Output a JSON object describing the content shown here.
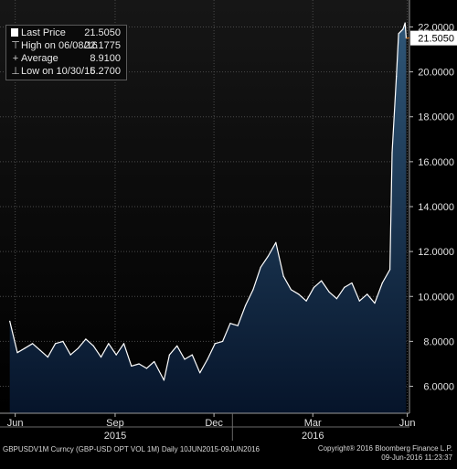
{
  "legend": {
    "last_price_label": "Last Price",
    "last_price_value": "21.5050",
    "high_label": "High on 06/08/16",
    "high_value": "22.1775",
    "average_label": "Average",
    "average_value": "8.9100",
    "low_label": "Low on 10/30/15",
    "low_value": "6.2700"
  },
  "last_price_tag": "21.5050",
  "footer": {
    "left": "GBPUSDV1M Curncy (GBP-USD OPT VOL 1M)  Daily 10JUN2015-09JUN2016",
    "right_line1": "Copyright® 2016 Bloomberg Finance L.P.",
    "right_line2": "09-Jun-2016 11:23:37"
  },
  "colors": {
    "background": "#000000",
    "plot_background_top": "#141414",
    "area_fill_top": "#2b4f6e",
    "area_fill_bottom": "#07162a",
    "line": "#ffffff",
    "grid": "#4a4a4a",
    "last_price_tag": "#ffffff",
    "last_price_marker": "#e07b20"
  },
  "chart_data": {
    "type": "area",
    "series": [
      {
        "name": "Last Price",
        "x": [
          "2015-06-10",
          "2015-06-17",
          "2015-06-24",
          "2015-07-01",
          "2015-07-08",
          "2015-07-15",
          "2015-07-22",
          "2015-07-29",
          "2015-08-05",
          "2015-08-12",
          "2015-08-19",
          "2015-08-26",
          "2015-09-02",
          "2015-09-09",
          "2015-09-16",
          "2015-09-23",
          "2015-09-30",
          "2015-10-07",
          "2015-10-14",
          "2015-10-21",
          "2015-10-30",
          "2015-11-04",
          "2015-11-11",
          "2015-11-18",
          "2015-11-25",
          "2015-12-02",
          "2015-12-09",
          "2015-12-16",
          "2015-12-23",
          "2015-12-30",
          "2016-01-06",
          "2016-01-13",
          "2016-01-20",
          "2016-01-27",
          "2016-02-03",
          "2016-02-10",
          "2016-02-17",
          "2016-02-24",
          "2016-03-02",
          "2016-03-09",
          "2016-03-16",
          "2016-03-23",
          "2016-03-30",
          "2016-04-06",
          "2016-04-13",
          "2016-04-20",
          "2016-04-27",
          "2016-05-04",
          "2016-05-11",
          "2016-05-18",
          "2016-05-25",
          "2016-05-27",
          "2016-05-31",
          "2016-06-02",
          "2016-06-06",
          "2016-06-08",
          "2016-06-09"
        ],
        "values": [
          8.9,
          7.5,
          7.7,
          7.9,
          7.6,
          7.3,
          7.9,
          8.0,
          7.4,
          7.7,
          8.1,
          7.8,
          7.3,
          7.9,
          7.4,
          7.9,
          6.9,
          7.0,
          6.8,
          7.1,
          6.27,
          7.4,
          7.8,
          7.2,
          7.4,
          6.6,
          7.2,
          7.9,
          8.0,
          8.8,
          8.7,
          9.6,
          10.3,
          11.3,
          11.8,
          12.4,
          10.9,
          10.3,
          10.1,
          9.8,
          10.4,
          10.7,
          10.2,
          9.9,
          10.4,
          10.6,
          9.8,
          10.1,
          9.7,
          10.6,
          11.2,
          16.4,
          19.8,
          21.7,
          21.9,
          22.1775,
          21.505
        ]
      }
    ],
    "title": "",
    "xlabel": "",
    "ylabel": "",
    "xtick_labels": [
      "Jun",
      "Sep",
      "Dec",
      "Mar",
      "Jun"
    ],
    "xtick_dates": [
      "2015-06-15",
      "2015-09-15",
      "2015-12-15",
      "2016-03-15",
      "2016-06-10"
    ],
    "year_labels": [
      "2015",
      "2016"
    ],
    "year_label_dates": [
      "2015-09-15",
      "2016-03-15"
    ],
    "ylim": [
      4.8,
      23.2
    ],
    "yticks": [
      6,
      8,
      10,
      12,
      14,
      16,
      18,
      20,
      22
    ],
    "ytick_labels": [
      "6.0000",
      "8.0000",
      "10.0000",
      "12.0000",
      "14.0000",
      "16.0000",
      "18.0000",
      "20.0000",
      "22.0000"
    ],
    "last_value": 21.505,
    "grid": true,
    "legend_position": "top-left"
  }
}
